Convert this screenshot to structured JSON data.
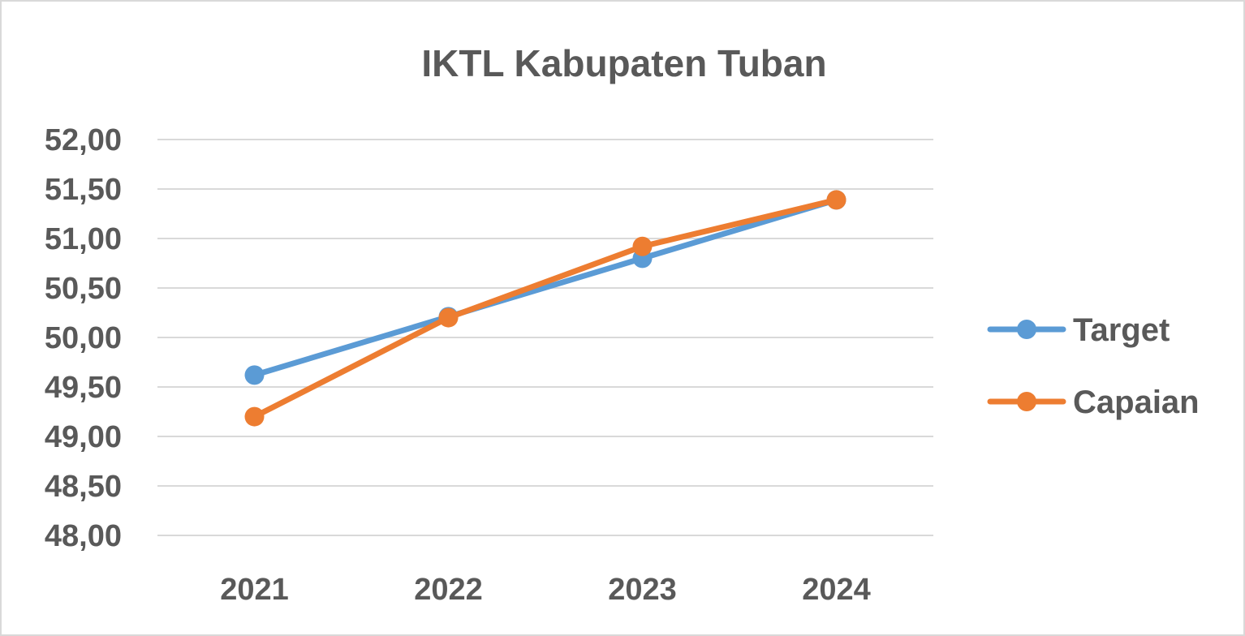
{
  "chart_data": {
    "type": "line",
    "title": "IKTL Kabupaten Tuban",
    "xlabel": "",
    "ylabel": "",
    "categories": [
      "2021",
      "2022",
      "2023",
      "2024"
    ],
    "ylim": [
      48.0,
      52.0
    ],
    "yticks": [
      "48,00",
      "48,50",
      "49,00",
      "49,50",
      "50,00",
      "50,50",
      "51,00",
      "51,50",
      "52,00"
    ],
    "ytick_values": [
      48.0,
      48.5,
      49.0,
      49.5,
      50.0,
      50.5,
      51.0,
      51.5,
      52.0
    ],
    "grid": true,
    "legend_position": "right",
    "series": [
      {
        "name": "Target",
        "color": "#5b9bd5",
        "values": [
          49.62,
          50.21,
          50.8,
          51.39
        ]
      },
      {
        "name": "Capaian",
        "color": "#ed7d31",
        "values": [
          49.2,
          50.2,
          50.92,
          51.39
        ]
      }
    ]
  }
}
